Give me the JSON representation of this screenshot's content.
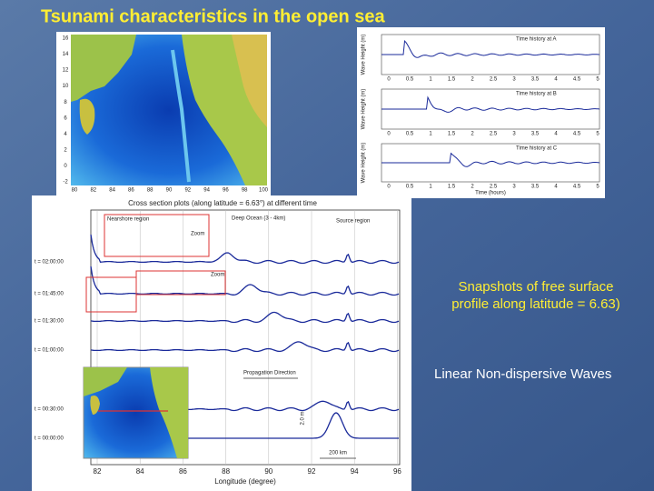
{
  "title": "Tsunami characteristics in the open sea",
  "map": {
    "y_labels": [
      "16",
      "14",
      "12",
      "10",
      "8",
      "6",
      "4",
      "2",
      "0",
      "-2"
    ],
    "x_labels": [
      "80",
      "82",
      "84",
      "86",
      "88",
      "90",
      "92",
      "94",
      "96",
      "98",
      "100"
    ]
  },
  "time_history": {
    "panels": [
      "Time history at A",
      "Time history at B",
      "Time history at C"
    ],
    "x_labels": [
      "0",
      "0.5",
      "1",
      "1.5",
      "2",
      "2.5",
      "3",
      "3.5",
      "4",
      "4.5",
      "5"
    ],
    "y_label": "Wave Height (m)",
    "x_label": "Time (hours)"
  },
  "cross_section": {
    "title": "Cross section plots (along latitude = 6.63°) at different time",
    "time_labels": [
      "t = 02:00:00",
      "t = 01:45:00",
      "t = 01:30:00",
      "t = 01:00:00",
      "t = 00:30:00",
      "t = 00:00:00"
    ],
    "x_labels": [
      "82",
      "84",
      "86",
      "88",
      "90",
      "92",
      "94",
      "96"
    ],
    "x_label": "Longitude (degree)",
    "nearshore": "Nearshore region",
    "deep": "Deep Ocean (3 - 4km)",
    "source": "Source region",
    "zoom": "Zoom",
    "propagation": "Propagation Direction",
    "height": "2.0 m",
    "distance": "200 km"
  },
  "captions": {
    "snapshot": [
      "Snapshots of free surface",
      "profile along latitude = 6.63)"
    ],
    "linear": "Linear Non-dispersive  Waves"
  }
}
